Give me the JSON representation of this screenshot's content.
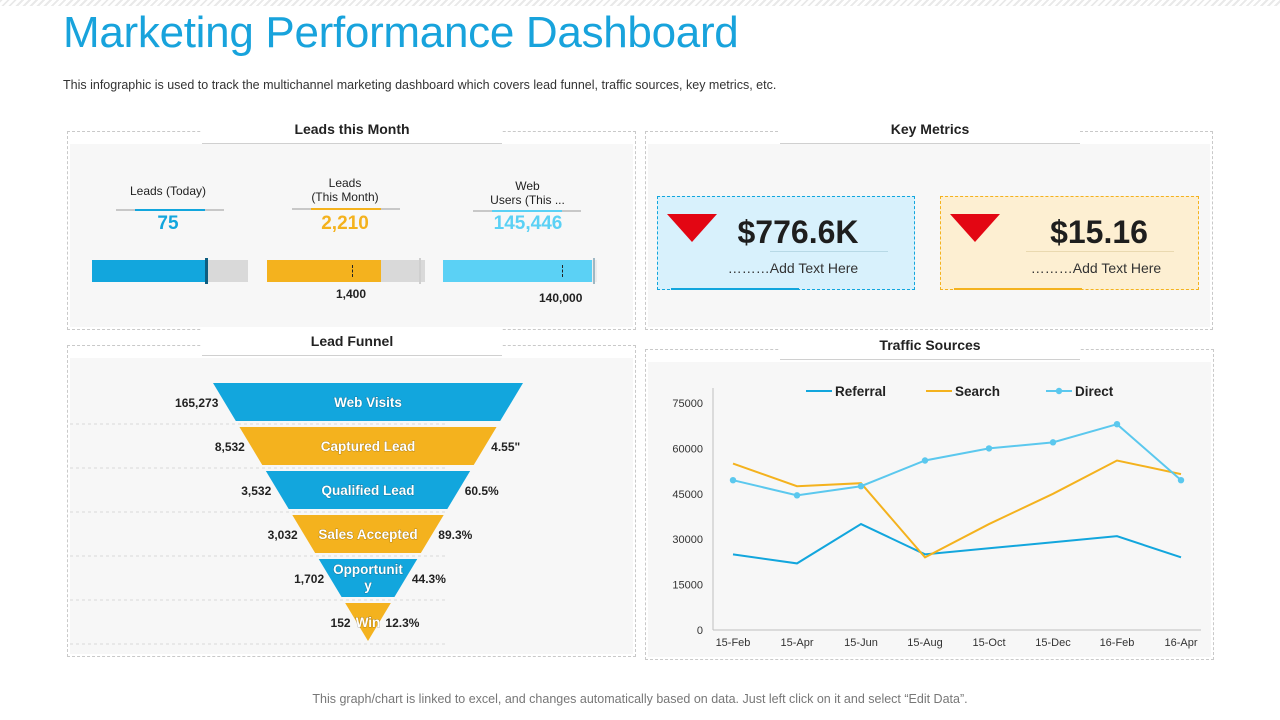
{
  "header": {
    "title": "Marketing Performance Dashboard",
    "subtitle": "This infographic is used to track the multichannel marketing dashboard which covers lead funnel, traffic sources, key metrics, etc."
  },
  "footer": {
    "note": "This graph/chart is linked to excel, and changes automatically based on data. Just left click on it and select “Edit Data”."
  },
  "leads_panel": {
    "title": "Leads this Month",
    "kpis": [
      {
        "label": "Leads (Today)",
        "value": "75",
        "color": "#12a6dd",
        "progress": 0.745,
        "target": null,
        "target_fraction": null,
        "end_marker": true
      },
      {
        "label": "Leads\n(This Month)",
        "value": "2,210",
        "color": "#f4b21e",
        "progress": 0.72,
        "target": "1,400",
        "target_fraction": 0.54,
        "end_marker": false
      },
      {
        "label": "Web\nUsers (This ...",
        "value": "145,446",
        "color": "#5bd1f5",
        "progress": 0.97,
        "target": "140,000",
        "target_fraction": 0.77,
        "end_marker": true
      }
    ]
  },
  "metrics_panel": {
    "title": "Key Metrics",
    "cards": [
      {
        "value": "$776.6K",
        "sub": "………Add Text Here",
        "bg": "#d8f1fc",
        "accent": "#12a6dd"
      },
      {
        "value": "$15.16",
        "sub": "………Add Text Here",
        "bg": "#fdefd2",
        "accent": "#f4b21e"
      }
    ]
  },
  "funnel_panel": {
    "title": "Lead Funnel",
    "stages": [
      {
        "label": "Web Visits",
        "count": "165,273",
        "rate": "",
        "color": "#12a6dd"
      },
      {
        "label": "Captured Lead",
        "count": "8,532",
        "rate": "4.55\"",
        "color": "#f4b21e"
      },
      {
        "label": "Qualified Lead",
        "count": "3,532",
        "rate": "60.5%",
        "color": "#12a6dd"
      },
      {
        "label": "Sales Accepted",
        "count": "3,032",
        "rate": "89.3%",
        "color": "#f4b21e"
      },
      {
        "label": "Opportunit\ny",
        "count": "1,702",
        "rate": "44.3%",
        "color": "#12a6dd"
      },
      {
        "label": "Win",
        "count": "152",
        "rate": "12.3%",
        "color": "#f4b21e"
      }
    ]
  },
  "traffic_panel": {
    "title": "Traffic Sources"
  },
  "chart_data": {
    "type": "line",
    "title": "Traffic Sources",
    "xlabel": "",
    "ylabel": "",
    "categories": [
      "15-Feb",
      "15-Apr",
      "15-Jun",
      "15-Aug",
      "15-Oct",
      "15-Dec",
      "16-Feb",
      "16-Apr"
    ],
    "yticks": [
      0,
      15000,
      30000,
      45000,
      60000,
      75000
    ],
    "ylim": [
      0,
      75000
    ],
    "legend": "top",
    "grid": false,
    "series": [
      {
        "name": "Referral",
        "color": "#12a6dd",
        "markers": false,
        "values": [
          25000,
          22000,
          35000,
          25000,
          27000,
          29000,
          31000,
          24000
        ]
      },
      {
        "name": "Search",
        "color": "#f4b21e",
        "markers": false,
        "values": [
          55000,
          47500,
          48500,
          24000,
          35000,
          45000,
          56000,
          51500
        ]
      },
      {
        "name": "Direct",
        "color": "#5bc8ee",
        "markers": true,
        "values": [
          49500,
          44500,
          47500,
          56000,
          60000,
          62000,
          68000,
          49500
        ]
      }
    ]
  }
}
